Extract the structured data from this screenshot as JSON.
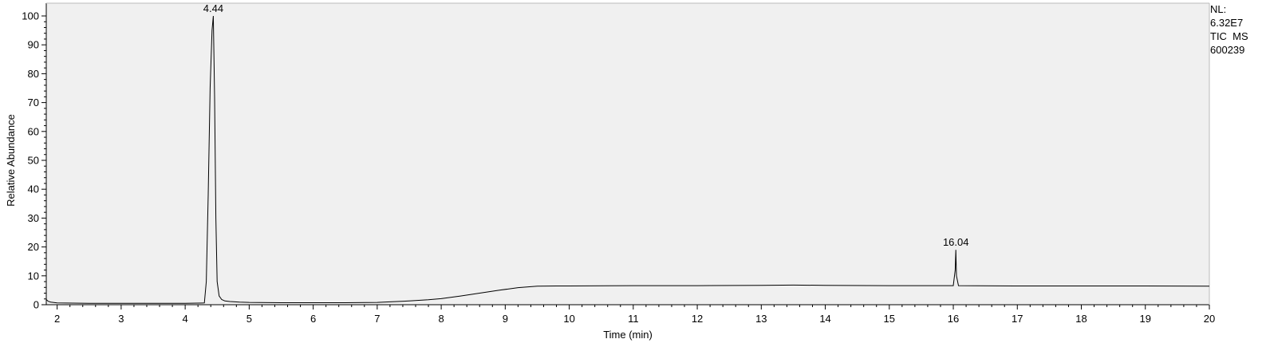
{
  "info": {
    "nl_label": "NL:",
    "nl_value": "6.32E7",
    "trace_type": "TIC  MS",
    "sample_id": "600239"
  },
  "chart_data": {
    "type": "line",
    "xlabel": "Time (min)",
    "ylabel": "Relative Abundance",
    "xlim": [
      1.83,
      20.0
    ],
    "ylim": [
      0,
      100
    ],
    "xticks": [
      2,
      3,
      4,
      5,
      6,
      7,
      8,
      9,
      10,
      11,
      12,
      13,
      14,
      15,
      16,
      17,
      18,
      19,
      20
    ],
    "yticks": [
      0,
      10,
      20,
      30,
      40,
      50,
      60,
      70,
      80,
      90,
      100
    ],
    "grid": false,
    "series": [
      {
        "x": [
          1.83,
          1.86,
          1.9,
          2.0,
          2.5,
          3.0,
          3.5,
          4.0,
          4.3,
          4.33,
          4.36,
          4.39,
          4.42,
          4.44,
          4.46,
          4.48,
          4.5,
          4.53,
          4.57,
          4.62,
          4.7,
          4.85,
          5.0,
          5.5,
          6.0,
          6.5,
          7.0,
          7.2,
          7.5,
          7.8,
          8.0,
          8.3,
          8.6,
          8.9,
          9.2,
          9.5,
          9.8,
          10.0,
          11.0,
          12.0,
          13.0,
          13.5,
          14.0,
          15.0,
          16.0,
          16.03,
          16.04,
          16.05,
          16.08,
          17.0,
          18.0,
          19.0,
          20.0
        ],
        "y": [
          1.8,
          1.2,
          0.9,
          0.6,
          0.5,
          0.5,
          0.5,
          0.5,
          0.6,
          8.0,
          38.0,
          75.0,
          95.0,
          100.0,
          72.0,
          30.0,
          8.0,
          3.0,
          1.8,
          1.3,
          1.1,
          0.9,
          0.8,
          0.7,
          0.7,
          0.7,
          0.8,
          1.0,
          1.3,
          1.7,
          2.1,
          3.0,
          4.0,
          5.0,
          5.9,
          6.4,
          6.5,
          6.5,
          6.6,
          6.6,
          6.7,
          6.8,
          6.7,
          6.6,
          6.6,
          12.0,
          19.0,
          10.0,
          6.6,
          6.5,
          6.5,
          6.5,
          6.4
        ]
      }
    ],
    "peak_labels": [
      {
        "x": 4.44,
        "y": 100,
        "text": "4.44"
      },
      {
        "x": 16.04,
        "y": 19,
        "text": "16.04"
      }
    ]
  }
}
